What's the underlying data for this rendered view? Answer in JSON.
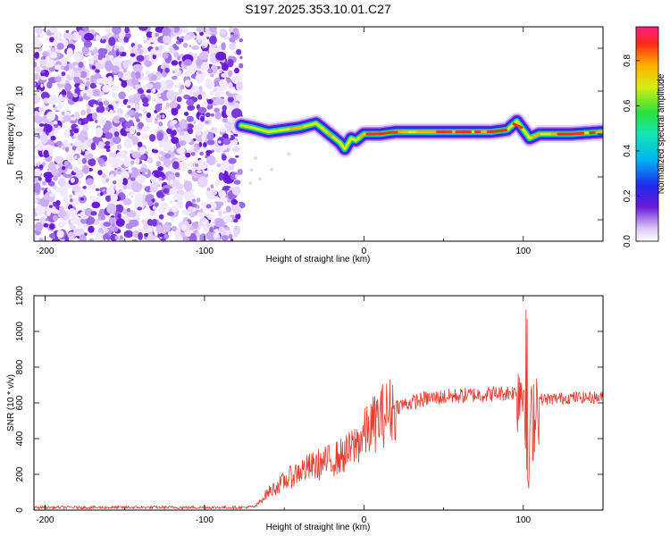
{
  "title": "S197.2025.353.10.01.C27",
  "chart_data": [
    {
      "type": "heatmap",
      "xlabel": "Height of straight line (km)",
      "ylabel": "Frequency (Hz)",
      "xlim": [
        -207,
        150
      ],
      "ylim": [
        -25,
        25
      ],
      "x_ticks": [
        -200,
        -100,
        0,
        100
      ],
      "y_ticks": [
        -20,
        -10,
        0,
        10,
        20
      ],
      "noise_region_x": [
        -207,
        -77
      ],
      "ridge": {
        "x": [
          -77,
          -70,
          -60,
          -50,
          -40,
          -30,
          -25,
          -20,
          -15,
          -12,
          -8,
          -5,
          0,
          10,
          20,
          40,
          60,
          80,
          90,
          96,
          100,
          104,
          110,
          130,
          150
        ],
        "freq": [
          2,
          1.5,
          0.5,
          1,
          1.5,
          2.5,
          1,
          -0.5,
          -2,
          -3.5,
          -1,
          -1.5,
          0,
          0,
          0.5,
          0.5,
          0.5,
          0.5,
          1,
          3,
          1,
          -1,
          0,
          0,
          0.5
        ]
      },
      "colorbar": {
        "label": "Normalized spectral amplitude",
        "range": [
          0,
          0.95
        ],
        "ticks": [
          "0.0",
          "0.2",
          "0.4",
          "0.6",
          "0.8"
        ]
      }
    },
    {
      "type": "line",
      "xlabel": "Height of straight line (km)",
      "ylabel": "SNR (10 * v/v)",
      "xlim": [
        -207,
        150
      ],
      "ylim": [
        0,
        1200
      ],
      "x_ticks": [
        -200,
        -100,
        0,
        100
      ],
      "y_ticks": [
        0,
        200,
        400,
        600,
        800,
        1000,
        1200
      ],
      "series": [
        {
          "name": "SNR",
          "color": "#e83a2e",
          "x": [
            -207,
            -150,
            -100,
            -75,
            -68,
            -60,
            -50,
            -40,
            -30,
            -20,
            -10,
            0,
            10,
            20,
            40,
            60,
            80,
            95,
            100,
            104,
            108,
            115,
            130,
            150
          ],
          "y": [
            15,
            15,
            15,
            15,
            20,
            100,
            160,
            220,
            250,
            280,
            320,
            420,
            520,
            580,
            625,
            640,
            650,
            660,
            700,
            400,
            620,
            620,
            630,
            630
          ]
        }
      ]
    }
  ]
}
